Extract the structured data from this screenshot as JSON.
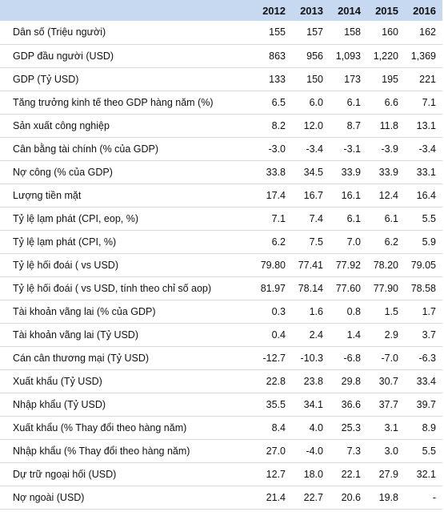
{
  "header": {
    "years": [
      "2012",
      "2013",
      "2014",
      "2015",
      "2016"
    ]
  },
  "rows": [
    {
      "label": "Dân số (Triệu người)",
      "values": [
        "155",
        "157",
        "158",
        "160",
        "162"
      ]
    },
    {
      "label": "GDP đầu người (USD)",
      "values": [
        "863",
        "956",
        "1,093",
        "1,220",
        "1,369"
      ]
    },
    {
      "label": "GDP (Tỷ USD)",
      "values": [
        "133",
        "150",
        "173",
        "195",
        "221"
      ]
    },
    {
      "label": "Tăng trưởng kinh tế theo GDP hàng năm (%)",
      "values": [
        "6.5",
        "6.0",
        "6.1",
        "6.6",
        "7.1"
      ]
    },
    {
      "label": "Sản xuất công nghiệp",
      "values": [
        "8.2",
        "12.0",
        "8.7",
        "11.8",
        "13.1"
      ]
    },
    {
      "label": "Cân bằng tài chính (% của GDP)",
      "values": [
        "-3.0",
        "-3.4",
        "-3.1",
        "-3.9",
        "-3.4"
      ]
    },
    {
      "label": "Nợ công (% của GDP)",
      "values": [
        "33.8",
        "34.5",
        "33.9",
        "33.9",
        "33.1"
      ]
    },
    {
      "label": "Lượng tiền mặt",
      "values": [
        "17.4",
        "16.7",
        "16.1",
        "12.4",
        "16.4"
      ]
    },
    {
      "label": "Tỷ lệ lạm phát (CPI, eop, %)",
      "values": [
        "7.1",
        "7.4",
        "6.1",
        "6.1",
        "5.5"
      ]
    },
    {
      "label": "Tỷ lệ lạm phát (CPI, %)",
      "values": [
        "6.2",
        "7.5",
        "7.0",
        "6.2",
        "5.9"
      ]
    },
    {
      "label": "Tỷ lệ hối đoái ( vs USD)",
      "values": [
        "79.80",
        "77.41",
        "77.92",
        "78.20",
        "79.05"
      ]
    },
    {
      "label": "Tỷ lệ hối đoái ( vs USD, tính theo chỉ số aop)",
      "values": [
        "81.97",
        "78.14",
        "77.60",
        "77.90",
        "78.58"
      ]
    },
    {
      "label": "Tài khoản vãng lai (% của GDP)",
      "values": [
        "0.3",
        "1.6",
        "0.8",
        "1.5",
        "1.7"
      ]
    },
    {
      "label": "Tài khoản vãng lai (Tỷ USD)",
      "values": [
        "0.4",
        "2.4",
        "1.4",
        "2.9",
        "3.7"
      ]
    },
    {
      "label": "Cán cân thương mại (Tỷ USD)",
      "values": [
        "-12.7",
        "-10.3",
        "-6.8",
        "-7.0",
        "-6.3"
      ]
    },
    {
      "label": "Xuất khẩu (Tỷ USD)",
      "values": [
        "22.8",
        "23.8",
        "29.8",
        "30.7",
        "33.4"
      ]
    },
    {
      "label": "Nhập khẩu (Tỷ USD)",
      "values": [
        "35.5",
        "34.1",
        "36.6",
        "37.7",
        "39.7"
      ]
    },
    {
      "label": "Xuất khẩu (% Thay đổi theo hàng năm)",
      "values": [
        "8.4",
        "4.0",
        "25.3",
        "3.1",
        "8.9"
      ]
    },
    {
      "label": "Nhập khẩu (% Thay đổi theo hàng năm)",
      "values": [
        "27.0",
        "-4.0",
        "7.3",
        "3.0",
        "5.5"
      ]
    },
    {
      "label": "Dự trữ ngoại hối (USD)",
      "values": [
        "12.7",
        "18.0",
        "22.1",
        "27.9",
        "32.1"
      ]
    },
    {
      "label": "Nợ ngoài (USD)",
      "values": [
        "21.4",
        "22.7",
        "20.6",
        "19.8",
        "-"
      ]
    }
  ],
  "colors": {
    "header_bg": "#c6d9f1",
    "row_border": "#d7d7d7"
  }
}
